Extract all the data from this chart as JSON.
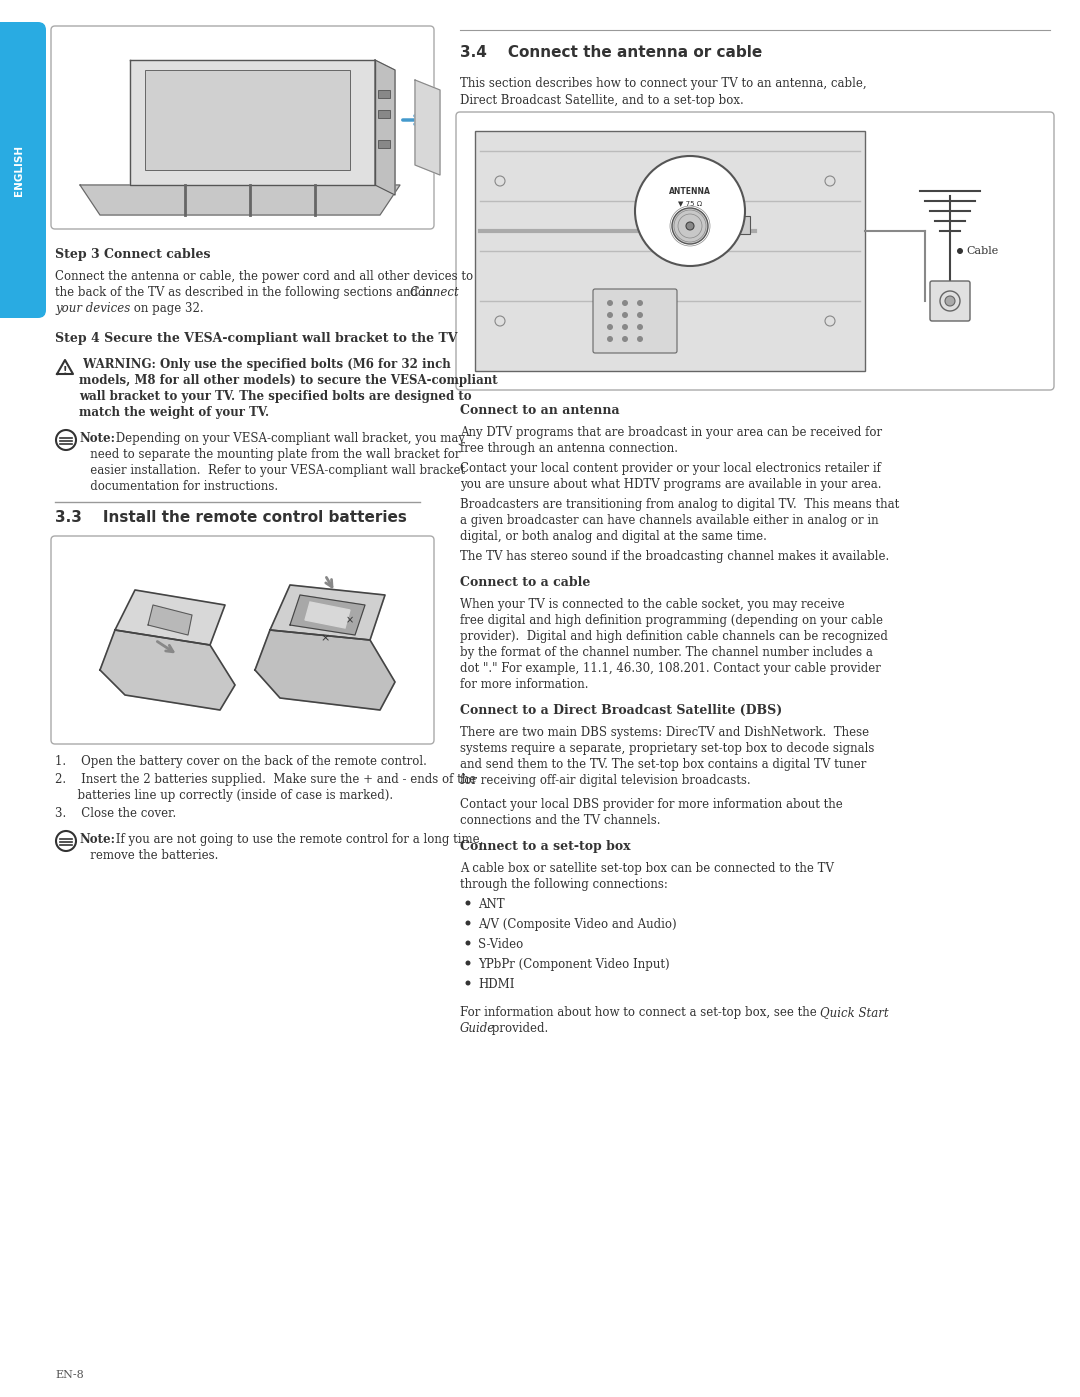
{
  "page_bg": "#ffffff",
  "sidebar_color": "#29abe2",
  "text_color": "#333333",
  "page_number": "EN-8",
  "sidebar_text": "ENGLISH",
  "section33_title": "3.3    Install the remote control batteries",
  "section34_title": "3.4    Connect the antenna or cable",
  "step3_title": "Step 3 Connect cables",
  "step3_body": "Connect the antenna or cable, the power cord and all other devices to\nthe back of the TV as described in the following sections and in ",
  "step3_italic": "Connect",
  "step3_tail": "\nyour devices",
  "step3_tail2": " on page 32.",
  "step4_title": "Step 4 Secure the VESA-compliant wall bracket to the TV",
  "warning_line1": " WARNING: Only use the specified bolts (M6 for 32 inch",
  "warning_line2": "models, M8 for all other models) to secure the VESA-compliant",
  "warning_line3": "wall bracket to your TV. The specified bolts are designed to",
  "warning_line4": "match the weight of your TV.",
  "note1_label": "Note:",
  "note1_body": " Depending on your VESA-compliant wall bracket, you may\n   need to separate the mounting plate from the wall bracket for\n   easier installation.  Refer to your VESA-compliant wall bracket\n   documentation for instructions.",
  "battery_step1": "1.    Open the battery cover on the back of the remote control.",
  "battery_step2a": "2.    Insert the 2 batteries supplied.  Make sure the + and - ends of the",
  "battery_step2b": "      batteries line up correctly (inside of case is marked).",
  "battery_step3": "3.    Close the cover.",
  "note2_label": "Note:",
  "note2_body": " If you are not going to use the remote control for a long time,\n   remove the batteries.",
  "sec34_desc1": "This section describes how to connect your TV to an antenna, cable,",
  "sec34_desc2": "Direct Broadcast Satellite, and to a set-top box.",
  "antenna_title": "Connect to an antenna",
  "antenna_text1a": "Any DTV programs that are broadcast in your area can be received for",
  "antenna_text1b": "free through an antenna connection.",
  "antenna_text2a": "Contact your local content provider or your local electronics retailer if",
  "antenna_text2b": "you are unsure about what HDTV programs are available in your area.",
  "antenna_text3a": "Broadcasters are transitioning from analog to digital TV.  This means that",
  "antenna_text3b": "a given broadcaster can have channels available either in analog or in",
  "antenna_text3c": "digital, or both analog and digital at the same time.",
  "antenna_text4": "The TV has stereo sound if the broadcasting channel makes it available.",
  "cable_title": "Connect to a cable",
  "cable_text1": "When your TV is connected to the cable socket, you may receive",
  "cable_text2": "free digital and high definition programming (depending on your cable",
  "cable_text3": "provider).  Digital and high definition cable channels can be recognized",
  "cable_text4": "by the format of the channel number. The channel number includes a",
  "cable_text5": "dot \".\" For example, 11.1, 46.30, 108.201. Contact your cable provider",
  "cable_text6": "for more information.",
  "dbs_title": "Connect to a Direct Broadcast Satellite (DBS)",
  "dbs_text1": "There are two main DBS systems: DirecTV and DishNetwork.  These",
  "dbs_text2": "systems require a separate, proprietary set-top box to decode signals",
  "dbs_text3": "and send them to the TV. The set-top box contains a digital TV tuner",
  "dbs_text4": "for receiving off-air digital television broadcasts.",
  "dbs_text5": "Contact your local DBS provider for more information about the",
  "dbs_text6": "connections and the TV channels.",
  "settop_title": "Connect to a set-top box",
  "settop_text1": "A cable box or satellite set-top box can be connected to the TV",
  "settop_text2": "through the following connections:",
  "settop_bullets": [
    "ANT",
    "A/V (Composite Video and Audio)",
    "S-Video",
    "YPbPr (Component Video Input)",
    "HDMI"
  ],
  "settop_footer1": "For information about how to connect a set-top box, see the ",
  "settop_footer_italic": "Quick Start",
  "settop_footer2": "Guide",
  "settop_footer3": " provided."
}
